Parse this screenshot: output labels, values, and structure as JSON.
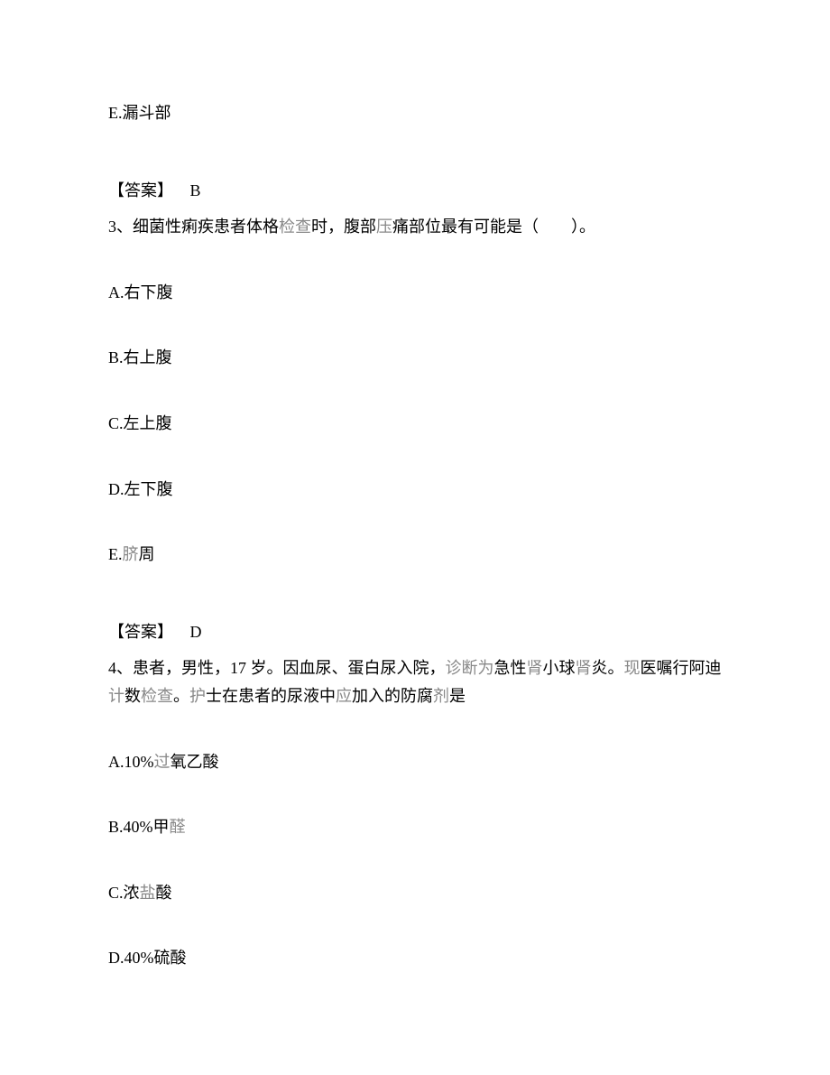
{
  "q_prev": {
    "option_e": "E.漏斗部",
    "answer_label": "【答案】",
    "answer_value": "B"
  },
  "q3": {
    "num": "3、",
    "t1": "细菌性痢疾患者体格",
    "t2_gray": "检查",
    "t3": "时，腹部",
    "t4_gray": "压",
    "t5": "痛部位最有可能是（　　）。",
    "a": "A.右下腹",
    "b": "B.右上腹",
    "c": "C.左上腹",
    "d": "D.左下腹",
    "e_pre": "E.",
    "e_gray": "脐",
    "e_post": "周",
    "answer_label": "【答案】",
    "answer_value": "D"
  },
  "q4": {
    "num": "4、",
    "l1a": "患者，男性，17 岁。因血尿、蛋白尿入院，",
    "l1b_gray": "诊断为",
    "l1c": "急性",
    "l1d_gray": "肾",
    "l1e": "小球",
    "l1f_gray": "肾",
    "l1g": "炎。",
    "l1h_gray": "现",
    "l1i": "医嘱行阿迪",
    "l1j_gray": "计",
    "l2a": "数",
    "l2b_gray": "检查",
    "l2c": "。",
    "l2d_gray": "护",
    "l2e": "士在患者的尿液中",
    "l2f_gray": "应",
    "l2g": "加入的防腐",
    "l2h_gray": "剂",
    "l2i": "是",
    "a_pre": "A.10%",
    "a_gray": "过",
    "a_post": "氧乙酸",
    "b_pre": "B.40%甲",
    "b_gray": "醛",
    "c_pre": "C.浓",
    "c_gray": "盐",
    "c_post": "酸",
    "d": "D.40%硫酸"
  }
}
